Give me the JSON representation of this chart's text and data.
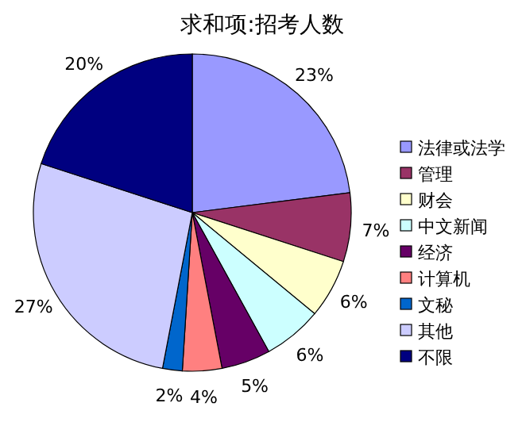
{
  "chart_data": {
    "type": "pie",
    "title": "求和项:招考人数",
    "categories": [
      "法律或法学",
      "管理",
      "财会",
      "中文新闻",
      "经济",
      "计算机",
      "文秘",
      "其他",
      "不限"
    ],
    "values": [
      23,
      7,
      6,
      6,
      5,
      4,
      2,
      27,
      20
    ],
    "colors": [
      "#9999ff",
      "#993366",
      "#ffffcc",
      "#ccffff",
      "#660066",
      "#ff8080",
      "#0066cc",
      "#ccccff",
      "#000080"
    ],
    "value_labels": [
      "23%",
      "7%",
      "6%",
      "6%",
      "5%",
      "4%",
      "2%",
      "27%",
      "20%"
    ],
    "legend": "right"
  }
}
